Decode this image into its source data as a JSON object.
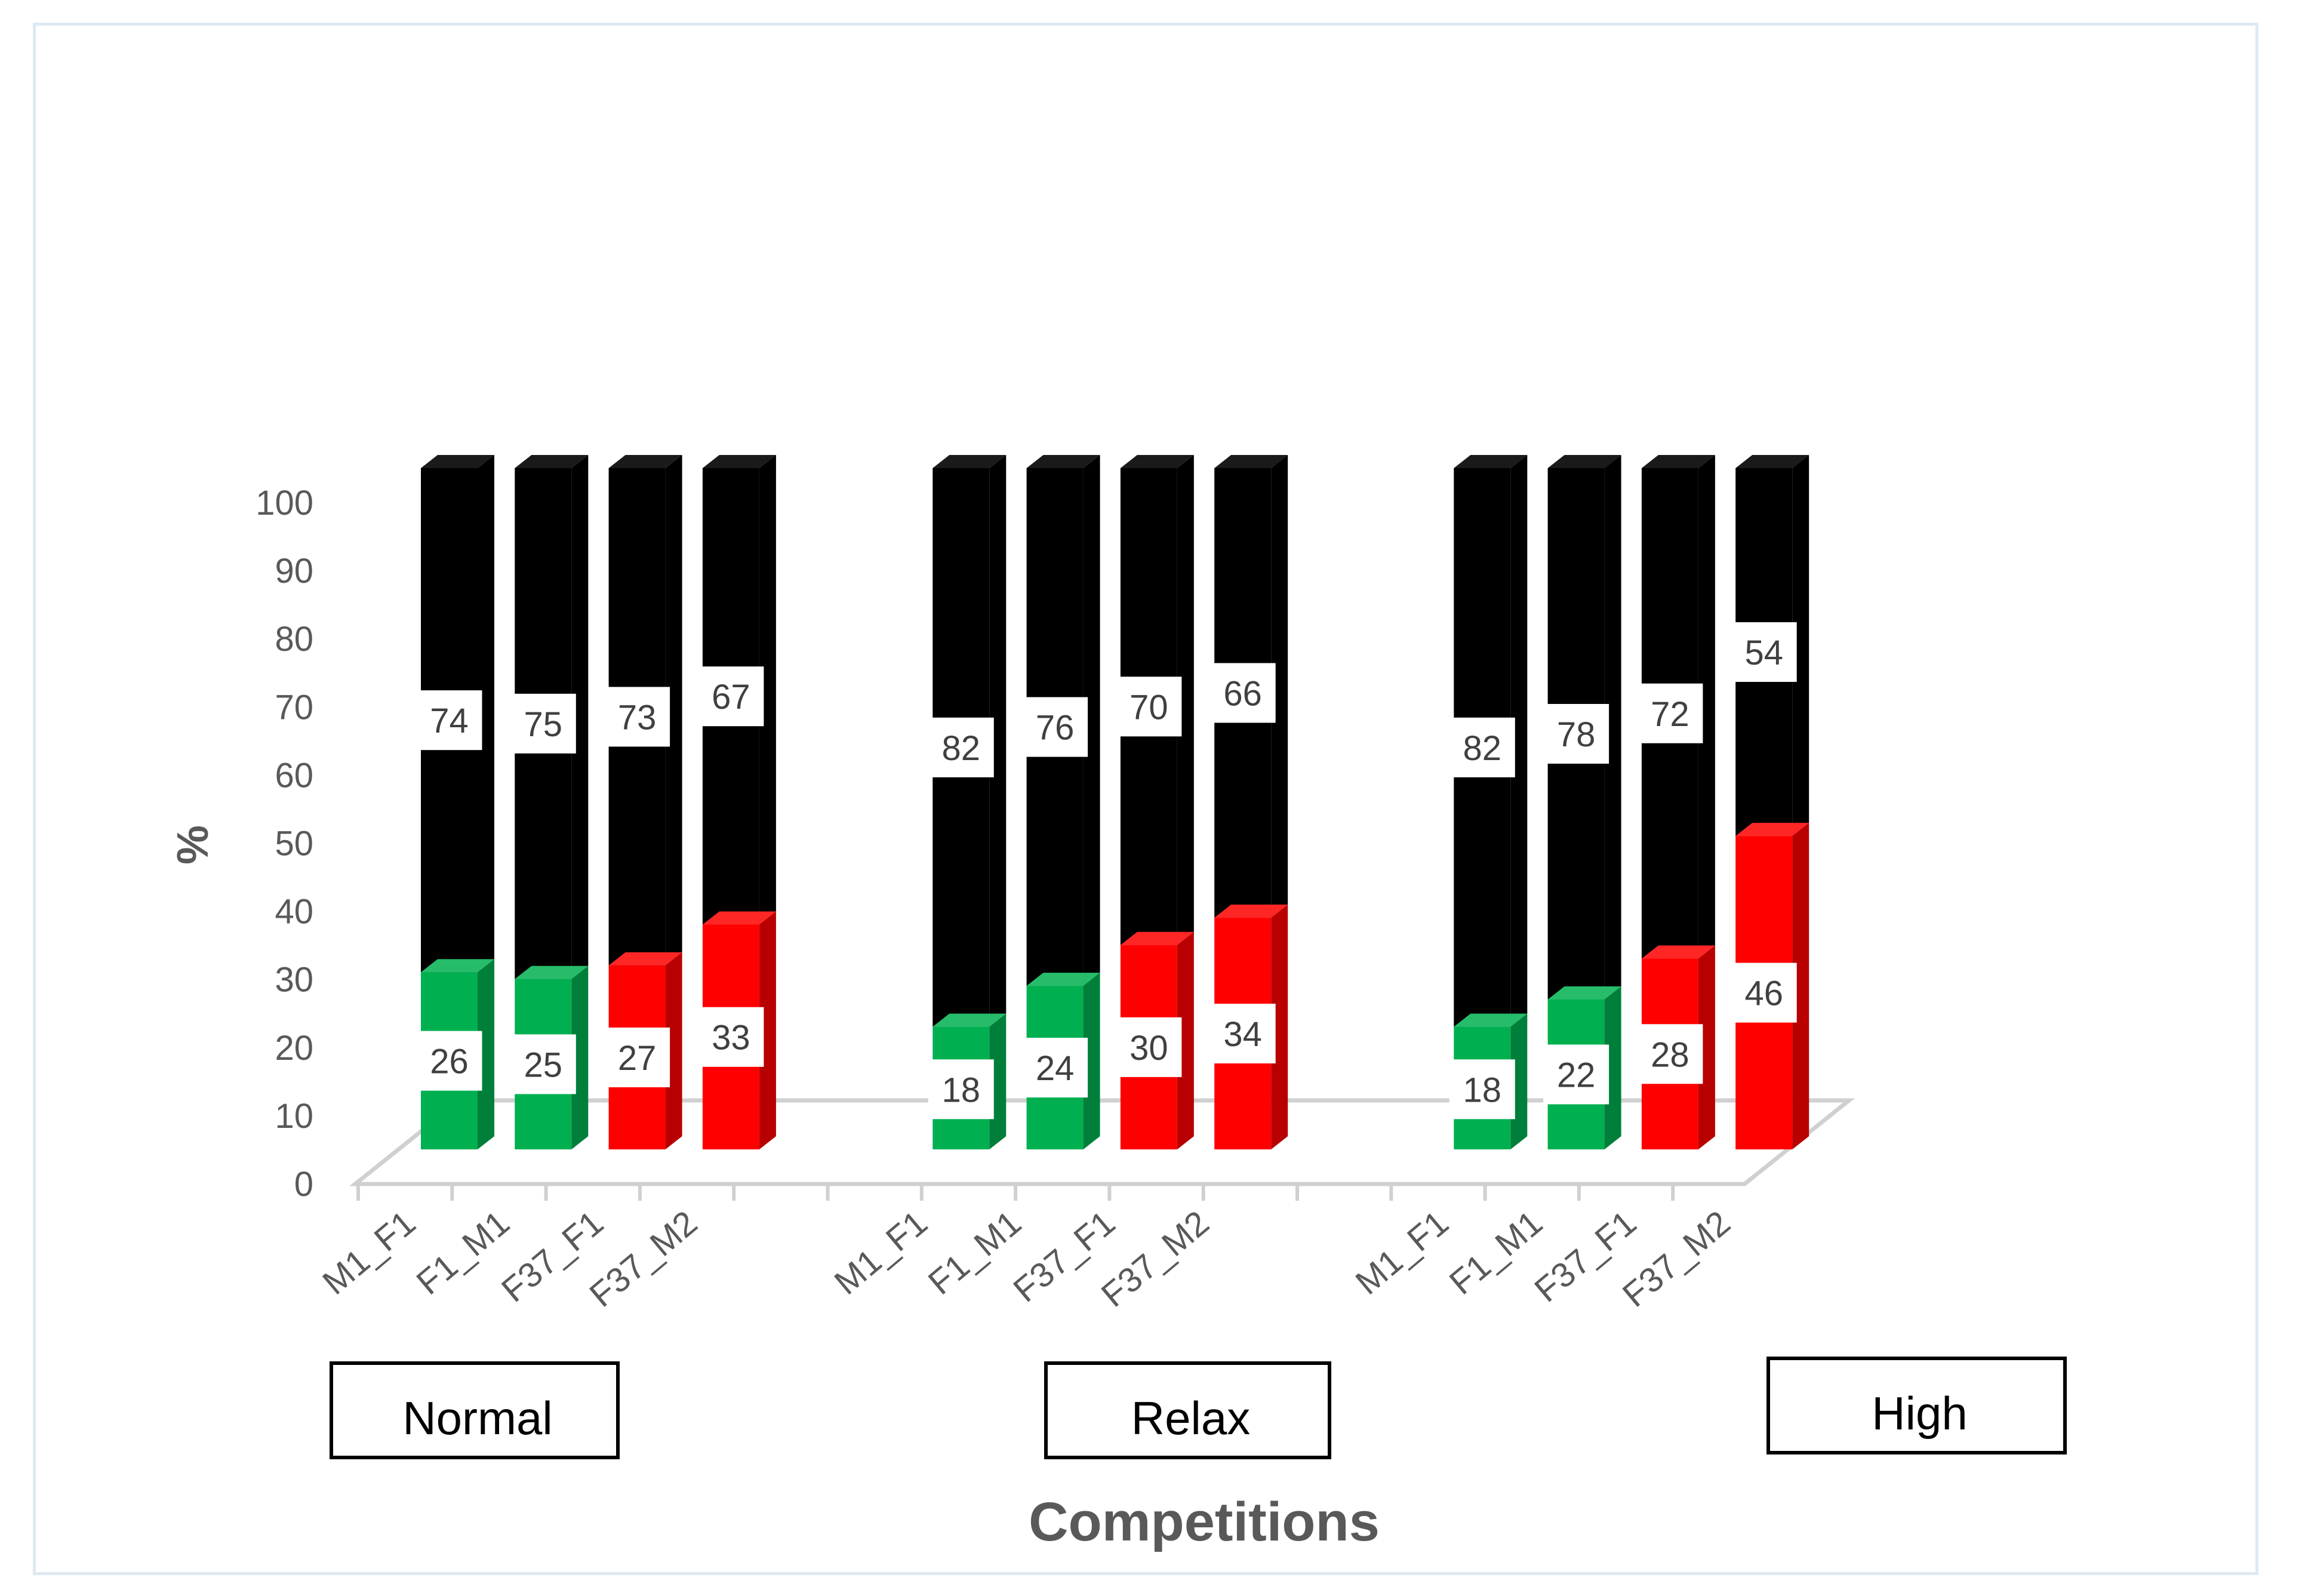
{
  "chart_data": {
    "type": "bar",
    "stacked": true,
    "three_d": true,
    "title": "",
    "xlabel": "Competitions",
    "ylabel": "%",
    "ylim": [
      0,
      100
    ],
    "yticks": [
      0,
      10,
      20,
      30,
      40,
      50,
      60,
      70,
      80,
      90,
      100
    ],
    "grid": false,
    "legend": "none",
    "groups": [
      {
        "name": "Normal",
        "categories": [
          "M1_F1",
          "F1_M1",
          "F37_F1",
          "F37_M2"
        ],
        "bottom": [
          26,
          25,
          27,
          33
        ],
        "top": [
          74,
          75,
          73,
          67
        ],
        "bottom_colors": [
          "#00b050",
          "#00b050",
          "#ff0000",
          "#ff0000"
        ]
      },
      {
        "name": "Relax",
        "categories": [
          "M1_F1",
          "F1_M1",
          "F37_F1",
          "F37_M2"
        ],
        "bottom": [
          18,
          24,
          30,
          34
        ],
        "top": [
          82,
          76,
          70,
          66
        ],
        "bottom_colors": [
          "#00b050",
          "#00b050",
          "#ff0000",
          "#ff0000"
        ]
      },
      {
        "name": "High",
        "categories": [
          "M1_F1",
          "F1_M1",
          "F37_F1",
          "F37_M2"
        ],
        "bottom": [
          18,
          22,
          28,
          46
        ],
        "top": [
          82,
          78,
          72,
          54
        ],
        "bottom_colors": [
          "#00b050",
          "#00b050",
          "#ff0000",
          "#ff0000"
        ]
      }
    ],
    "top_color": "#000000"
  }
}
